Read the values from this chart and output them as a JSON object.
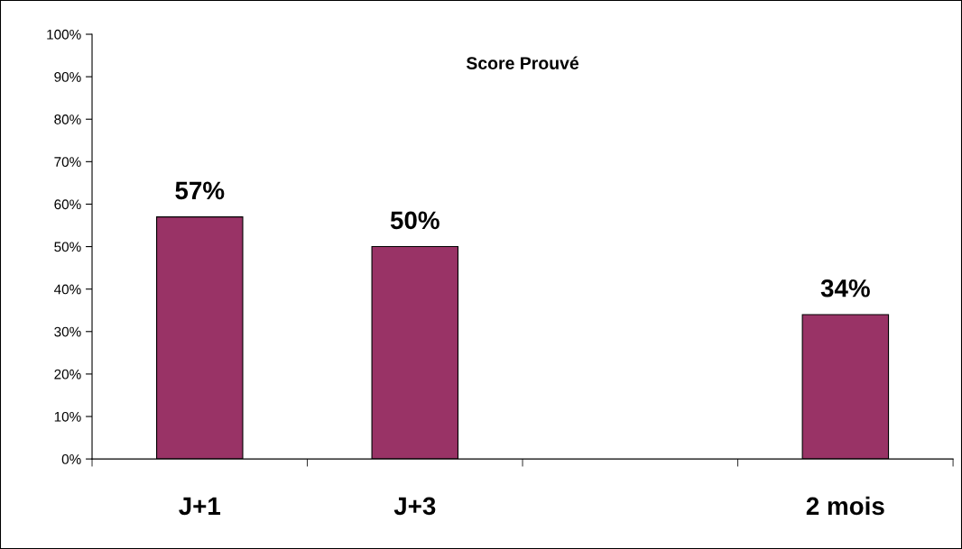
{
  "chart_data": {
    "type": "bar",
    "title": "Score Prouvé",
    "categories": [
      "J+1",
      "J+3",
      null,
      "2 mois"
    ],
    "series": [
      {
        "color": "#993366",
        "values": [
          57,
          50,
          null,
          34
        ],
        "value_labels": [
          "57%",
          "50%",
          null,
          "34%"
        ]
      }
    ],
    "ylim": [
      0,
      100
    ],
    "yticks": [
      {
        "value": 0,
        "label": "0%"
      },
      {
        "value": 10,
        "label": "10%"
      },
      {
        "value": 20,
        "label": "20%"
      },
      {
        "value": 30,
        "label": "30%"
      },
      {
        "value": 40,
        "label": "40%"
      },
      {
        "value": 50,
        "label": "50%"
      },
      {
        "value": 60,
        "label": "60%"
      },
      {
        "value": 70,
        "label": "70%"
      },
      {
        "value": 80,
        "label": "80%"
      },
      {
        "value": 90,
        "label": "90%"
      },
      {
        "value": 100,
        "label": "100%"
      }
    ]
  }
}
